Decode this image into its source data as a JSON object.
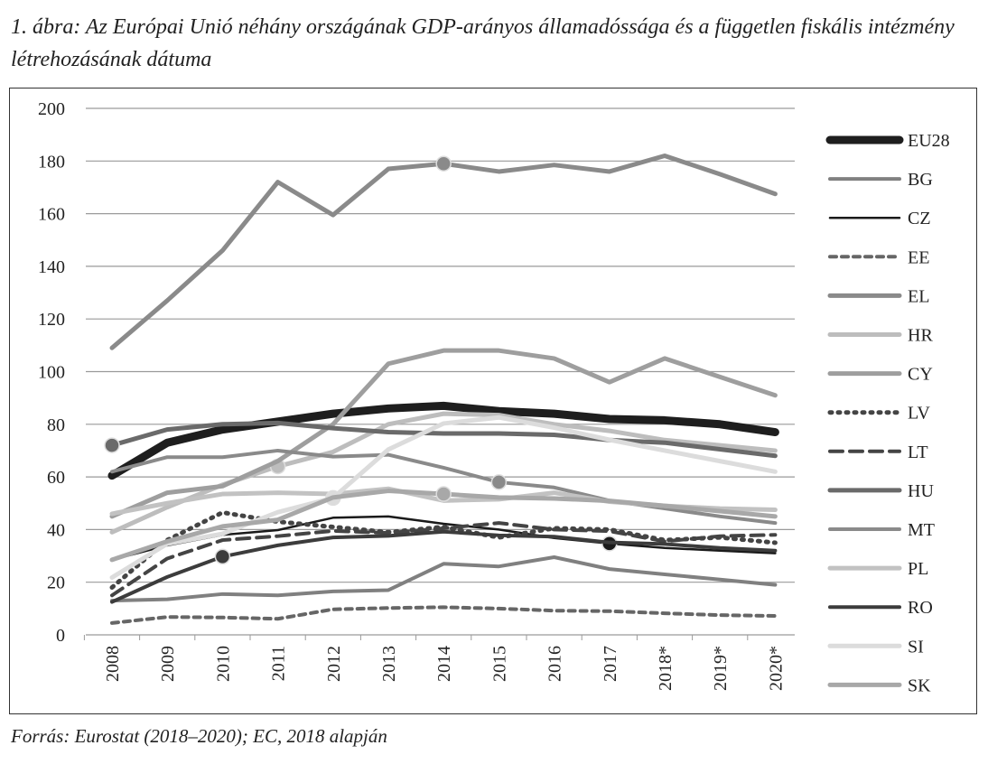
{
  "title": "1. ábra: Az Európai Unió néhány országának GDP-arányos államadóssága és a független fiskális intézmény létrehozásának dátuma",
  "source": "Forrás: Eurostat (2018–2020); EC, 2018 alapján",
  "chart_data": {
    "type": "line",
    "title": "1. ábra: Az Európai Unió néhány országának GDP-arányos államadóssága és a független fiskális intézmény létrehozásának dátuma",
    "xlabel": "",
    "ylabel": "",
    "ylim": [
      0,
      200
    ],
    "yticks": [
      0,
      20,
      40,
      60,
      80,
      100,
      120,
      140,
      160,
      180,
      200
    ],
    "categories": [
      "2008",
      "2009",
      "2010",
      "2011",
      "2012",
      "2013",
      "2014",
      "2015",
      "2016",
      "2017",
      "2018*",
      "2019*",
      "2020*"
    ],
    "grid": true,
    "legend_position": "right",
    "series": [
      {
        "name": "EU28",
        "color": "#1e1e1e",
        "width": 9,
        "dash": "",
        "values": [
          60.5,
          73,
          78,
          81,
          84,
          86,
          87,
          85,
          84,
          82,
          81.5,
          80,
          77
        ],
        "marker_year": null
      },
      {
        "name": "BG",
        "color": "#808080",
        "width": 4,
        "dash": "",
        "values": [
          13,
          13.5,
          15.5,
          15,
          16.5,
          17,
          27,
          26,
          29.5,
          25,
          23,
          21,
          19
        ],
        "marker_year": null
      },
      {
        "name": "CZ",
        "color": "#1a1a1a",
        "width": 2.5,
        "dash": "",
        "values": [
          28.5,
          34,
          38,
          39.8,
          44.5,
          45,
          42.2,
          40,
          36.8,
          34.7,
          33,
          32,
          31
        ],
        "marker_year": "2017"
      },
      {
        "name": "EE",
        "color": "#666666",
        "width": 4,
        "dash": "7 6",
        "values": [
          4.5,
          6.8,
          6.6,
          6.1,
          9.7,
          10.2,
          10.5,
          10,
          9.2,
          9,
          8.2,
          7.5,
          7.2
        ],
        "marker_year": null
      },
      {
        "name": "EL",
        "color": "#8a8a8a",
        "width": 5,
        "dash": "",
        "values": [
          109,
          127,
          146,
          172,
          159.5,
          177,
          179,
          176,
          178.5,
          176,
          182,
          175,
          167.5
        ],
        "marker_year": "2014"
      },
      {
        "name": "HR",
        "color": "#bdbdbd",
        "width": 5,
        "dash": "",
        "values": [
          39,
          48.5,
          57,
          64,
          69.5,
          80,
          84,
          83.5,
          80,
          77.5,
          74,
          72,
          70
        ],
        "marker_year": "2011"
      },
      {
        "name": "CY",
        "color": "#9e9e9e",
        "width": 5,
        "dash": "",
        "values": [
          45,
          54,
          56.5,
          66,
          80,
          103,
          108,
          108,
          105,
          96,
          105,
          98,
          91
        ],
        "marker_year": null
      },
      {
        "name": "LV",
        "color": "#444444",
        "width": 5,
        "dash": "2 7",
        "values": [
          18,
          36,
          46.5,
          43,
          41,
          39,
          41,
          37,
          40.5,
          40,
          36,
          37,
          35
        ],
        "marker_year": null
      },
      {
        "name": "LT",
        "color": "#444444",
        "width": 4,
        "dash": "14 8",
        "values": [
          15,
          29,
          36,
          37.5,
          39.5,
          38.7,
          40.5,
          42.5,
          40,
          39.4,
          35.5,
          37.5,
          38
        ],
        "marker_year": null
      },
      {
        "name": "HU",
        "color": "#6a6a6a",
        "width": 5,
        "dash": "",
        "values": [
          72,
          78,
          80,
          80.5,
          78.5,
          77,
          76.5,
          76.5,
          76,
          74,
          73,
          70.5,
          68
        ],
        "marker_year": "2008"
      },
      {
        "name": "MT",
        "color": "#8a8a8a",
        "width": 4,
        "dash": "",
        "values": [
          62,
          67.5,
          67.5,
          70,
          67.7,
          68.4,
          63.5,
          58,
          56,
          51,
          48,
          45,
          42.5
        ],
        "marker_year": "2015"
      },
      {
        "name": "PL",
        "color": "#c2c2c2",
        "width": 5,
        "dash": "",
        "values": [
          46,
          50,
          53.5,
          54,
          53.5,
          55.5,
          51,
          51.5,
          54,
          50.6,
          49,
          48,
          47.5
        ],
        "marker_year": null
      },
      {
        "name": "RO",
        "color": "#3c3c3c",
        "width": 4,
        "dash": "",
        "values": [
          12.5,
          22,
          29.7,
          34,
          37,
          37.6,
          39.2,
          37.8,
          37.3,
          35.1,
          34.5,
          33,
          32
        ],
        "marker_year": "2010"
      },
      {
        "name": "SI",
        "color": "#dcdcdc",
        "width": 5,
        "dash": "",
        "values": [
          21.8,
          34.6,
          38.4,
          46.6,
          52,
          70.4,
          80.3,
          82.6,
          78.7,
          74.1,
          70,
          66,
          62
        ],
        "marker_year": "2012"
      },
      {
        "name": "SK",
        "color": "#a8a8a8",
        "width": 5,
        "dash": "",
        "values": [
          28.5,
          35.5,
          41.2,
          43.7,
          52.2,
          54.7,
          53.5,
          52.2,
          51.8,
          50.9,
          49,
          47,
          45
        ],
        "marker_year": "2014"
      }
    ]
  }
}
